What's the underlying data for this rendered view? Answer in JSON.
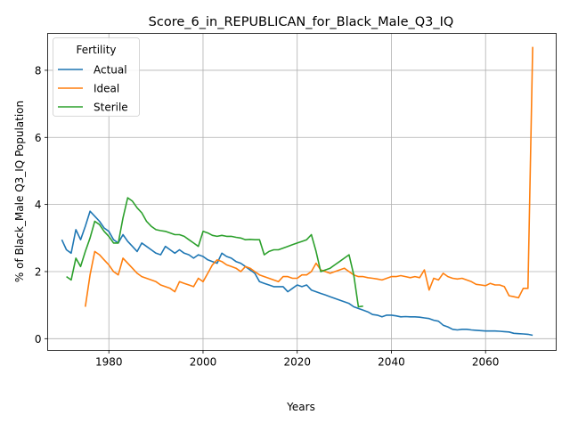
{
  "chart_data": {
    "type": "line",
    "title": "Score_6_in_REPUBLICAN_for_Black_Male_Q3_IQ",
    "xlabel": "Years",
    "ylabel": "% of Black_Male Q3_IQ Population",
    "xlim": [
      1967,
      2075
    ],
    "ylim": [
      -0.35,
      9.1
    ],
    "xticks": [
      1980,
      2000,
      2020,
      2040,
      2060
    ],
    "yticks": [
      0,
      2,
      4,
      6,
      8
    ],
    "grid": true,
    "legend": {
      "title": "Fertility",
      "placement": "upper left"
    },
    "series": [
      {
        "name": "Actual",
        "color": "#1f77b4",
        "x": [
          1970,
          1971,
          1972,
          1973,
          1974,
          1975,
          1976,
          1977,
          1978,
          1979,
          1980,
          1981,
          1982,
          1983,
          1984,
          1985,
          1986,
          1987,
          1988,
          1989,
          1990,
          1991,
          1992,
          1993,
          1994,
          1995,
          1996,
          1997,
          1998,
          1999,
          2000,
          2001,
          2002,
          2003,
          2004,
          2005,
          2006,
          2007,
          2008,
          2009,
          2010,
          2011,
          2012,
          2013,
          2014,
          2015,
          2016,
          2017,
          2018,
          2019,
          2020,
          2021,
          2022,
          2023,
          2024,
          2025,
          2026,
          2027,
          2028,
          2029,
          2030,
          2031,
          2032,
          2033,
          2034,
          2035,
          2036,
          2037,
          2038,
          2039,
          2040,
          2041,
          2042,
          2043,
          2044,
          2045,
          2046,
          2047,
          2048,
          2049,
          2050,
          2051,
          2052,
          2053,
          2054,
          2055,
          2056,
          2057,
          2058,
          2059,
          2060,
          2061,
          2062,
          2063,
          2064,
          2065,
          2066,
          2067,
          2068,
          2069,
          2070
        ],
        "values": [
          2.95,
          2.65,
          2.55,
          3.25,
          2.95,
          3.35,
          3.8,
          3.65,
          3.5,
          3.3,
          3.2,
          2.95,
          2.85,
          3.1,
          2.9,
          2.75,
          2.6,
          2.85,
          2.75,
          2.65,
          2.55,
          2.5,
          2.75,
          2.65,
          2.55,
          2.65,
          2.55,
          2.5,
          2.4,
          2.5,
          2.45,
          2.35,
          2.3,
          2.25,
          2.55,
          2.45,
          2.4,
          2.3,
          2.25,
          2.15,
          2.05,
          1.95,
          1.7,
          1.65,
          1.6,
          1.55,
          1.55,
          1.55,
          1.4,
          1.5,
          1.6,
          1.55,
          1.6,
          1.45,
          1.4,
          1.35,
          1.3,
          1.25,
          1.2,
          1.15,
          1.1,
          1.05,
          0.95,
          0.9,
          0.85,
          0.8,
          0.72,
          0.7,
          0.65,
          0.7,
          0.7,
          0.68,
          0.65,
          0.66,
          0.65,
          0.65,
          0.64,
          0.62,
          0.6,
          0.55,
          0.52,
          0.4,
          0.35,
          0.28,
          0.26,
          0.28,
          0.28,
          0.26,
          0.25,
          0.24,
          0.23,
          0.23,
          0.23,
          0.22,
          0.21,
          0.2,
          0.16,
          0.15,
          0.14,
          0.13,
          0.1
        ]
      },
      {
        "name": "Ideal",
        "color": "#ff7f0e",
        "x": [
          1975,
          1976,
          1977,
          1978,
          1979,
          1980,
          1981,
          1982,
          1983,
          1984,
          1985,
          1986,
          1987,
          1988,
          1989,
          1990,
          1991,
          1992,
          1993,
          1994,
          1995,
          1996,
          1997,
          1998,
          1999,
          2000,
          2001,
          2002,
          2003,
          2004,
          2005,
          2006,
          2007,
          2008,
          2009,
          2010,
          2011,
          2012,
          2013,
          2014,
          2015,
          2016,
          2017,
          2018,
          2019,
          2020,
          2021,
          2022,
          2023,
          2024,
          2025,
          2026,
          2027,
          2028,
          2029,
          2030,
          2031,
          2032,
          2033,
          2034,
          2035,
          2036,
          2037,
          2038,
          2039,
          2040,
          2041,
          2042,
          2043,
          2044,
          2045,
          2046,
          2047,
          2048,
          2049,
          2050,
          2051,
          2052,
          2053,
          2054,
          2055,
          2056,
          2057,
          2058,
          2059,
          2060,
          2061,
          2062,
          2063,
          2064,
          2065,
          2066,
          2067,
          2068,
          2069,
          2070
        ],
        "values": [
          0.95,
          1.9,
          2.6,
          2.5,
          2.35,
          2.2,
          2.0,
          1.9,
          2.4,
          2.25,
          2.1,
          1.95,
          1.85,
          1.8,
          1.75,
          1.7,
          1.6,
          1.55,
          1.5,
          1.4,
          1.7,
          1.65,
          1.6,
          1.55,
          1.8,
          1.7,
          1.95,
          2.2,
          2.35,
          2.3,
          2.2,
          2.15,
          2.1,
          2.0,
          2.15,
          2.1,
          2.0,
          1.9,
          1.85,
          1.8,
          1.75,
          1.7,
          1.85,
          1.85,
          1.8,
          1.8,
          1.9,
          1.9,
          2.0,
          2.25,
          2.05,
          2.0,
          1.95,
          2.0,
          2.05,
          2.1,
          2.0,
          1.9,
          1.85,
          1.85,
          1.82,
          1.8,
          1.78,
          1.75,
          1.8,
          1.85,
          1.85,
          1.88,
          1.85,
          1.82,
          1.85,
          1.82,
          2.05,
          1.45,
          1.8,
          1.75,
          1.95,
          1.85,
          1.8,
          1.78,
          1.8,
          1.75,
          1.7,
          1.62,
          1.6,
          1.58,
          1.65,
          1.6,
          1.6,
          1.55,
          1.28,
          1.25,
          1.22,
          1.5,
          1.5,
          8.7
        ]
      },
      {
        "name": "Sterile",
        "color": "#2ca02c",
        "x": [
          1971,
          1972,
          1973,
          1974,
          1975,
          1976,
          1977,
          1978,
          1979,
          1980,
          1981,
          1982,
          1983,
          1984,
          1985,
          1986,
          1987,
          1988,
          1989,
          1990,
          1991,
          1992,
          1993,
          1994,
          1995,
          1996,
          1997,
          1998,
          1999,
          2000,
          2001,
          2002,
          2003,
          2004,
          2005,
          2006,
          2007,
          2008,
          2009,
          2010,
          2011,
          2012,
          2013,
          2014,
          2015,
          2016,
          2017,
          2018,
          2019,
          2020,
          2021,
          2022,
          2023,
          2024,
          2025,
          2026,
          2027,
          2028,
          2029,
          2030,
          2031,
          2032,
          2033,
          2034
        ],
        "values": [
          1.85,
          1.75,
          2.4,
          2.15,
          2.6,
          3.0,
          3.5,
          3.4,
          3.2,
          3.05,
          2.85,
          2.85,
          3.6,
          4.2,
          4.1,
          3.9,
          3.75,
          3.5,
          3.35,
          3.25,
          3.22,
          3.2,
          3.15,
          3.1,
          3.1,
          3.05,
          2.95,
          2.85,
          2.75,
          3.2,
          3.15,
          3.08,
          3.05,
          3.08,
          3.05,
          3.05,
          3.02,
          3.0,
          2.95,
          2.96,
          2.95,
          2.95,
          2.5,
          2.6,
          2.65,
          2.65,
          2.7,
          2.75,
          2.8,
          2.85,
          2.9,
          2.95,
          3.1,
          2.6,
          2.0,
          2.05,
          2.1,
          2.2,
          2.3,
          2.4,
          2.5,
          1.9,
          0.95,
          0.97
        ]
      }
    ]
  }
}
